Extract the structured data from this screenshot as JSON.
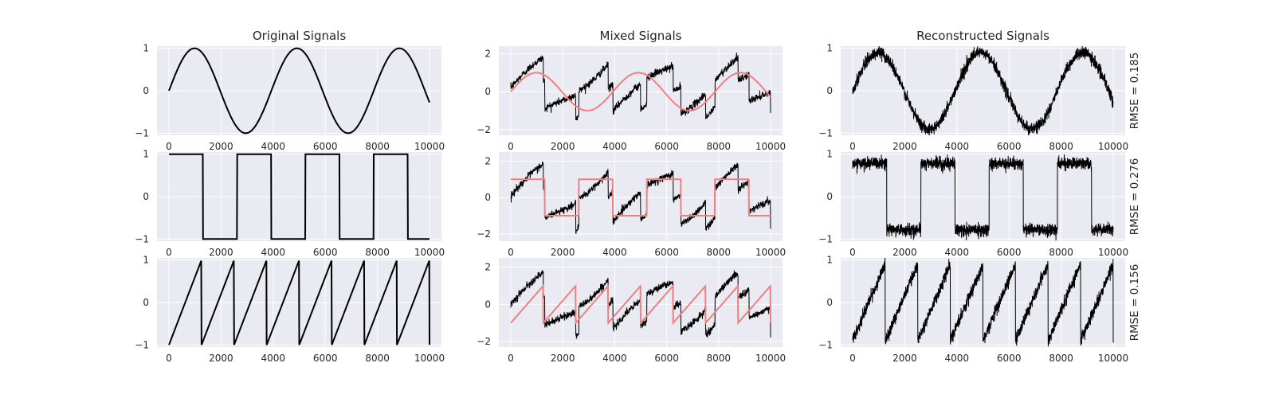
{
  "colors": {
    "background": "#ffffff",
    "axes_face": "#eaeaf2",
    "grid": "#ffffff",
    "signal": "#000000",
    "reference": "#f08080",
    "text": "#262626"
  },
  "chart_data": [
    {
      "type": "line",
      "panel": "original-sine",
      "title": "Original Signals",
      "xlim": [
        0,
        10000
      ],
      "ylim": [
        -1.05,
        1.05
      ],
      "xticks": [
        0,
        2000,
        4000,
        6000,
        8000,
        10000
      ],
      "yticks": [
        -1,
        0,
        1
      ],
      "series": [
        {
          "values_desc": "sin(2*pi*x/3930), amplitude 1, period ~3930 samples"
        }
      ]
    },
    {
      "type": "line",
      "panel": "original-square",
      "xlim": [
        0,
        10000
      ],
      "ylim": [
        -1.05,
        1.05
      ],
      "xticks": [
        0,
        2000,
        4000,
        6000,
        8000,
        10000
      ],
      "yticks": [
        -1,
        0,
        1
      ],
      "series": [
        {
          "values_desc": "square wave ±1, half-period ~1310 samples"
        }
      ]
    },
    {
      "type": "line",
      "panel": "original-sawtooth",
      "xlim": [
        0,
        10000
      ],
      "ylim": [
        -1.05,
        1.05
      ],
      "xticks": [
        0,
        2000,
        4000,
        6000,
        8000,
        10000
      ],
      "yticks": [
        -1,
        0,
        1
      ],
      "series": [
        {
          "values_desc": "sawtooth -1→1, period ~1250 samples"
        }
      ]
    },
    {
      "type": "line",
      "panel": "mixed-1",
      "title": "Mixed Signals",
      "xlim": [
        0,
        10000
      ],
      "ylim": [
        -2.3,
        2.4
      ],
      "xticks": [
        0,
        2000,
        4000,
        6000,
        8000,
        10000
      ],
      "yticks": [
        -2,
        0,
        2
      ]
    },
    {
      "type": "line",
      "panel": "mixed-2",
      "xlim": [
        0,
        10000
      ],
      "ylim": [
        -2.4,
        2.5
      ],
      "xticks": [
        0,
        2000,
        4000,
        6000,
        8000,
        10000
      ],
      "yticks": [
        -2,
        0,
        2
      ]
    },
    {
      "type": "line",
      "panel": "mixed-3",
      "xlim": [
        0,
        10000
      ],
      "ylim": [
        -2.3,
        2.5
      ],
      "xticks": [
        0,
        2000,
        4000,
        6000,
        8000,
        10000
      ],
      "yticks": [
        -2,
        0,
        2
      ]
    },
    {
      "type": "line",
      "panel": "reconstructed-1",
      "title": "Reconstructed Signals",
      "xlim": [
        0,
        10000
      ],
      "ylim": [
        -1.05,
        1.05
      ],
      "xticks": [
        0,
        2000,
        4000,
        6000,
        8000,
        10000
      ],
      "yticks": [
        -1,
        0,
        1
      ],
      "annotation": "RMSE = 0.185"
    },
    {
      "type": "line",
      "panel": "reconstructed-2",
      "xlim": [
        0,
        10000
      ],
      "ylim": [
        -1.05,
        1.05
      ],
      "xticks": [
        0,
        2000,
        4000,
        6000,
        8000,
        10000
      ],
      "yticks": [
        -1,
        0,
        1
      ],
      "annotation": "RMSE = 0.276"
    },
    {
      "type": "line",
      "panel": "reconstructed-3",
      "xlim": [
        0,
        10000
      ],
      "ylim": [
        -1.05,
        1.05
      ],
      "xticks": [
        0,
        2000,
        4000,
        6000,
        8000,
        10000
      ],
      "yticks": [
        -1,
        0,
        1
      ],
      "annotation": "RMSE = 0.156"
    }
  ],
  "labels": {
    "col_titles": [
      "Original Signals",
      "Mixed Signals",
      "Reconstructed Signals"
    ],
    "rmse": [
      "RMSE = 0.185",
      "RMSE = 0.276",
      "RMSE = 0.156"
    ]
  }
}
